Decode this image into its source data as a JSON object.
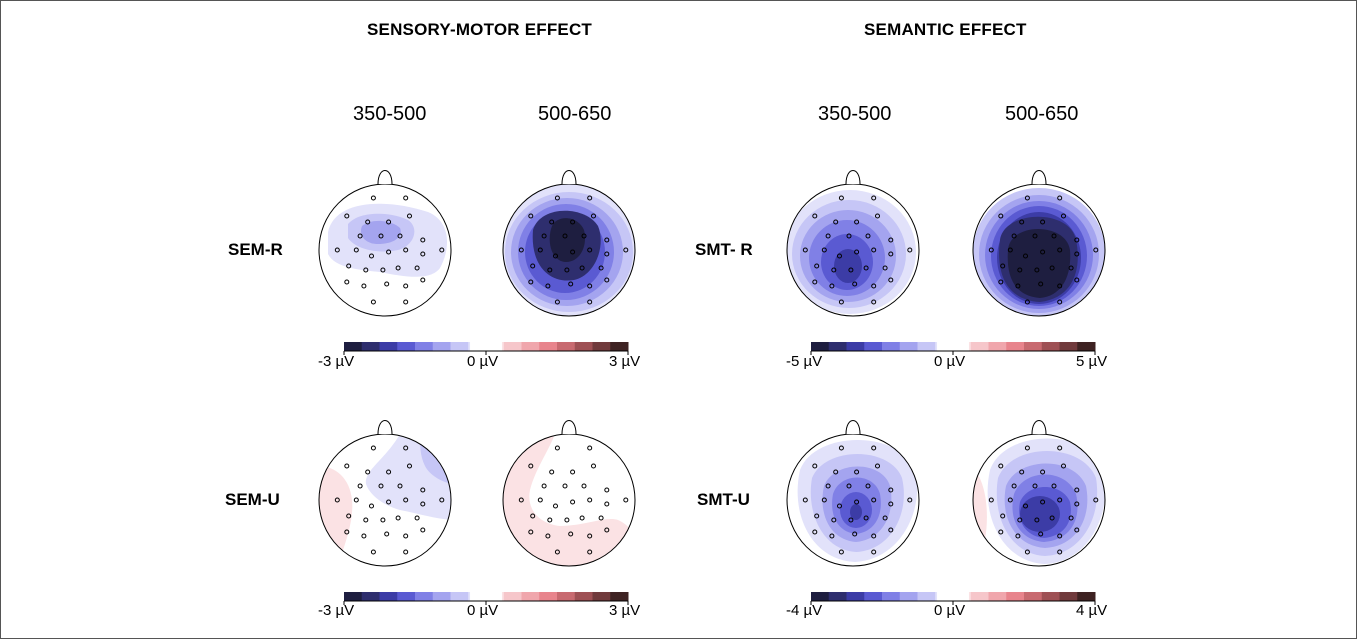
{
  "figure": {
    "sections": [
      {
        "title": "SENSORY-MOTOR EFFECT",
        "times": [
          "350-500",
          "500-650"
        ]
      },
      {
        "title": "SEMANTIC EFFECT",
        "times": [
          "350-500",
          "500-650"
        ]
      }
    ],
    "rows": [
      {
        "left_label": "SEM-R",
        "right_label": "SMT- R"
      },
      {
        "left_label": "SEM-U",
        "right_label": "SMT-U"
      }
    ],
    "colorbars": [
      {
        "min": "-3 µV",
        "zero": "0 µV",
        "max": "3 µV"
      },
      {
        "min": "-5 µV",
        "zero": "0 µV",
        "max": "5 µV"
      },
      {
        "min": "-3 µV",
        "zero": "0 µV",
        "max": "3 µV"
      },
      {
        "min": "-4 µV",
        "zero": "0 µV",
        "max": "4 µV"
      }
    ],
    "colors": {
      "neg": [
        "#1e1e40",
        "#2e2e6e",
        "#3c3ca6",
        "#5a5ad2",
        "#8080e6",
        "#a4a4ef",
        "#c6c6f6",
        "#e2e2fa"
      ],
      "pos": [
        "#fbe2e4",
        "#f6c6ca",
        "#f0a6ac",
        "#e8848c",
        "#c86a70",
        "#9e5054",
        "#703a3c",
        "#3e2222"
      ],
      "electrode": "#000000",
      "head_outline": "#000000"
    }
  }
}
